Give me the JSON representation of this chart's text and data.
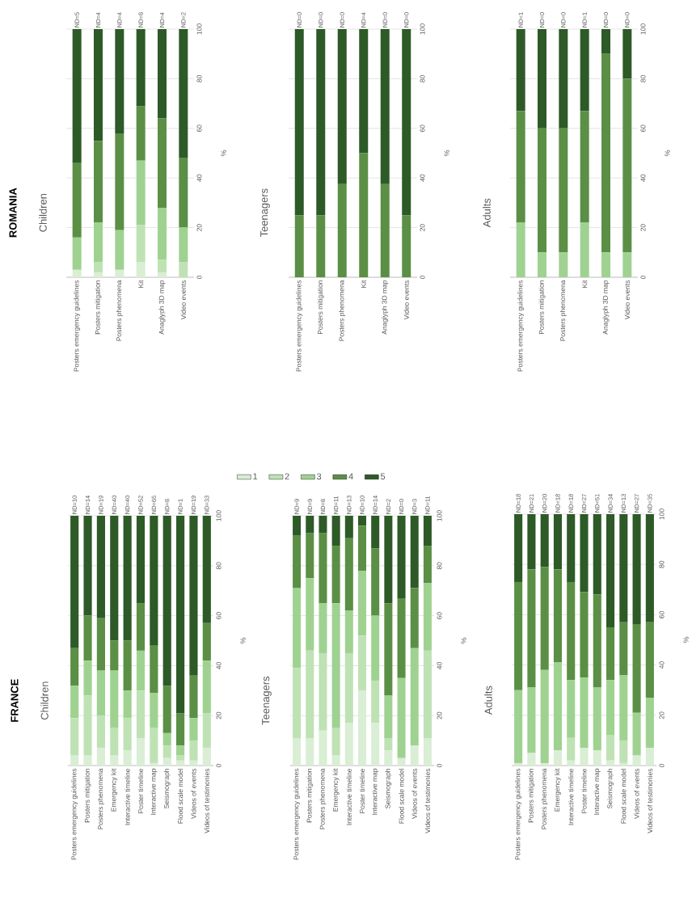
{
  "chart_data": [
    {
      "type": "bar",
      "stacked": true,
      "title": "ROMANIA",
      "subtitle": "Children",
      "ylabel": "%",
      "ylim": [
        0,
        100
      ],
      "yticks": [
        0,
        20,
        40,
        60,
        80,
        100
      ],
      "grid": "y",
      "legend": "bottom",
      "categories": [
        "Posters emergency guidelines",
        "Posters mitigation",
        "Posters phenomena",
        "Kit",
        "Anaglyph 3D map",
        "Video events"
      ],
      "series": [
        {
          "name": "1",
          "color": "#d9eed4",
          "values": [
            3,
            2,
            3,
            6,
            2,
            0
          ]
        },
        {
          "name": "2",
          "color": "#bfe2b5",
          "values": [
            0,
            4,
            0,
            15,
            5,
            6
          ]
        },
        {
          "name": "3",
          "color": "#9fd291",
          "values": [
            13,
            16,
            16,
            26,
            21,
            14
          ]
        },
        {
          "name": "4",
          "color": "#5b8f45",
          "values": [
            30,
            33,
            39,
            22,
            36,
            28
          ]
        },
        {
          "name": "5",
          "color": "#2d5a27",
          "values": [
            54,
            45,
            42,
            31,
            36,
            52
          ]
        }
      ],
      "annotations": [
        {
          "text": "ND=5",
          "x": "Posters emergency guidelines",
          "y": 100
        },
        {
          "text": "ND=4",
          "x": "Posters mitigation",
          "y": 100
        },
        {
          "text": "ND=4",
          "x": "Posters phenomena",
          "y": 100
        },
        {
          "text": "ND=8",
          "x": "Kit",
          "y": 100
        },
        {
          "text": "ND=4",
          "x": "Anaglyph 3D map",
          "y": 100
        },
        {
          "text": "ND=2",
          "x": "Video events",
          "y": 100
        }
      ]
    },
    {
      "type": "bar",
      "stacked": true,
      "title": "Teenagers",
      "ylabel": "%",
      "ylim": [
        0,
        100
      ],
      "yticks": [
        0,
        20,
        40,
        60,
        80,
        100
      ],
      "grid": "y",
      "categories": [
        "Posters emergency guidelines",
        "Posters mitigation",
        "Posters phenomena",
        "Kit",
        "Anaglyph 3D map",
        "Video events"
      ],
      "series": [
        {
          "color": "#d9eed4",
          "values": [
            0,
            0,
            0,
            0,
            0,
            0
          ]
        },
        {
          "color": "#bfe2b5",
          "values": [
            0,
            0,
            0,
            0,
            0,
            0
          ]
        },
        {
          "color": "#9fd291",
          "values": [
            0,
            0,
            0,
            0,
            0,
            0
          ]
        },
        {
          "color": "#5b8f45",
          "values": [
            25,
            25,
            37.5,
            50,
            37.5,
            25
          ]
        },
        {
          "color": "#2d5a27",
          "values": [
            75,
            75,
            62.5,
            50,
            62.5,
            75
          ]
        }
      ],
      "annotations": [
        {
          "text": "ND=0",
          "x": "Posters emergency guidelines",
          "y": 100
        },
        {
          "text": "ND=0",
          "x": "Posters mitigation",
          "y": 100
        },
        {
          "text": "ND=0",
          "x": "Posters phenomena",
          "y": 100
        },
        {
          "text": "ND=4",
          "x": "Kit",
          "y": 100
        },
        {
          "text": "ND=0",
          "x": "Anaglyph 3D map",
          "y": 100
        },
        {
          "text": "ND=0",
          "x": "Video events",
          "y": 100
        }
      ]
    },
    {
      "type": "bar",
      "stacked": true,
      "title": "Adults",
      "ylabel": "%",
      "ylim": [
        0,
        100
      ],
      "yticks": [
        0,
        20,
        40,
        60,
        80,
        100
      ],
      "grid": "y",
      "categories": [
        "Posters emergency guidelines",
        "Posters mitigation",
        "Posters phenomena",
        "Kit",
        "Anaglyph 3D map",
        "Video events"
      ],
      "series": [
        {
          "color": "#d9eed4",
          "values": [
            0,
            0,
            0,
            0,
            0,
            0
          ]
        },
        {
          "color": "#bfe2b5",
          "values": [
            0,
            0,
            0,
            0,
            0,
            0
          ]
        },
        {
          "color": "#9fd291",
          "values": [
            22,
            10,
            10,
            22,
            10,
            10
          ]
        },
        {
          "color": "#5b8f45",
          "values": [
            45,
            50,
            50,
            45,
            80,
            70
          ]
        },
        {
          "color": "#2d5a27",
          "values": [
            33,
            40,
            40,
            33,
            10,
            20
          ]
        }
      ],
      "annotations": [
        {
          "text": "ND=1",
          "x": "Posters emergency guidelines",
          "y": 100
        },
        {
          "text": "ND=0",
          "x": "Posters mitigation",
          "y": 100
        },
        {
          "text": "ND=0",
          "x": "Posters phenomena",
          "y": 100
        },
        {
          "text": "ND=1",
          "x": "Kit",
          "y": 100
        },
        {
          "text": "ND=0",
          "x": "Anaglyph 3D map",
          "y": 100
        },
        {
          "text": "ND=0",
          "x": "Video events",
          "y": 100
        }
      ]
    },
    {
      "type": "bar",
      "stacked": true,
      "title": "FRANCE",
      "subtitle": "Children",
      "ylabel": "%",
      "ylim": [
        0,
        100
      ],
      "yticks": [
        0,
        20,
        40,
        60,
        80,
        100
      ],
      "grid": "y",
      "categories": [
        "Posters emergency guidelines",
        "Posters mitigation",
        "Posters phenomena",
        "Emergency kit",
        "Interactive timeline",
        "Poster timeline",
        "Interactive map",
        "Seismograph",
        "Flood scale model",
        "Videos of events",
        "Videos of testimonies"
      ],
      "series": [
        {
          "color": "#d9eed4",
          "values": [
            4,
            4,
            7,
            4,
            6,
            11,
            1,
            3,
            2,
            2,
            7
          ]
        },
        {
          "color": "#bfe2b5",
          "values": [
            15,
            24,
            13,
            11,
            13,
            19,
            14,
            5,
            2,
            8,
            14
          ]
        },
        {
          "color": "#9fd291",
          "values": [
            13,
            14,
            18,
            23,
            11,
            16,
            14,
            5,
            4,
            9,
            21
          ]
        },
        {
          "color": "#5b8f45",
          "values": [
            15,
            18,
            21,
            12,
            20,
            19,
            19,
            19,
            13,
            17,
            15
          ]
        },
        {
          "color": "#2d5a27",
          "values": [
            53,
            40,
            41,
            50,
            50,
            35,
            52,
            68,
            79,
            64,
            43
          ]
        }
      ],
      "annotations": [
        {
          "text": "ND=10",
          "x": "Posters emergency guidelines",
          "y": 100
        },
        {
          "text": "ND=14",
          "x": "Posters mitigation",
          "y": 100
        },
        {
          "text": "ND=19",
          "x": "Posters phenomena",
          "y": 100
        },
        {
          "text": "ND=40",
          "x": "Emergency kit",
          "y": 100
        },
        {
          "text": "ND=40",
          "x": "Interactive timeline",
          "y": 100
        },
        {
          "text": "ND=52",
          "x": "Poster timeline",
          "y": 100
        },
        {
          "text": "ND=65",
          "x": "Interactive map",
          "y": 100
        },
        {
          "text": "ND=8",
          "x": "Seismograph",
          "y": 100
        },
        {
          "text": "ND=1",
          "x": "Flood scale model",
          "y": 100
        },
        {
          "text": "ND=19",
          "x": "Videos of events",
          "y": 100
        },
        {
          "text": "ND=33",
          "x": "Videos of testimonies",
          "y": 100
        }
      ]
    },
    {
      "type": "bar",
      "stacked": true,
      "title": "Teenagers",
      "ylabel": "%",
      "ylim": [
        0,
        100
      ],
      "yticks": [
        0,
        20,
        40,
        60,
        80,
        100
      ],
      "grid": "y",
      "categories": [
        "Posters emergency guidelines",
        "Posters mitigation",
        "Posters phenomena",
        "Emergency kit",
        "Interactive timeline",
        "Poster timeline",
        "Interactive map",
        "Seismograph",
        "Flood scale model",
        "Videos of events",
        "Videos of testimonies"
      ],
      "series": [
        {
          "color": "#d9eed4",
          "values": [
            11,
            11,
            14,
            4,
            17,
            30,
            17,
            6,
            3,
            8,
            11
          ]
        },
        {
          "color": "#bfe2b5",
          "values": [
            28,
            35,
            31,
            11,
            28,
            22,
            17,
            5,
            0,
            0,
            35
          ]
        },
        {
          "color": "#9fd291",
          "values": [
            32,
            29,
            20,
            50,
            17,
            26,
            26,
            17,
            32,
            39,
            27
          ]
        },
        {
          "color": "#5b8f45",
          "values": [
            21,
            18,
            28,
            23,
            29,
            18,
            27,
            37,
            32,
            24,
            15
          ]
        },
        {
          "color": "#2d5a27",
          "values": [
            8,
            7,
            7,
            12,
            9,
            4,
            13,
            35,
            33,
            29,
            12
          ]
        }
      ],
      "annotations": [
        {
          "text": "ND=9",
          "x": "Posters emergency guidelines",
          "y": 100
        },
        {
          "text": "ND=9",
          "x": "Posters mitigation",
          "y": 100
        },
        {
          "text": "ND=8",
          "x": "Posters phenomena",
          "y": 100
        },
        {
          "text": "ND=11",
          "x": "Emergency kit",
          "y": 100
        },
        {
          "text": "ND=13",
          "x": "Interactive timeline",
          "y": 100
        },
        {
          "text": "ND=10",
          "x": "Poster timeline",
          "y": 100
        },
        {
          "text": "ND=14",
          "x": "Interactive map",
          "y": 100
        },
        {
          "text": "ND=2",
          "x": "Seismograph",
          "y": 100
        },
        {
          "text": "ND=0",
          "x": "Flood scale model",
          "y": 100
        },
        {
          "text": "ND=3",
          "x": "Videos of events",
          "y": 100
        },
        {
          "text": "ND=11",
          "x": "Videos of testimonies",
          "y": 100
        }
      ]
    },
    {
      "type": "bar",
      "stacked": true,
      "title": "Adults",
      "ylabel": "%",
      "ylim": [
        0,
        100
      ],
      "yticks": [
        0,
        20,
        40,
        60,
        80,
        100
      ],
      "grid": "y",
      "categories": [
        "Posters emergency guidelines",
        "Posters mitigation",
        "Posters phenomena",
        "Emergency kit",
        "Interactive timeline",
        "Poster timeline",
        "Interactive map",
        "Seismograph",
        "Flood scale model",
        "Videos of events",
        "Videos of testimonies"
      ],
      "series": [
        {
          "color": "#d9eed4",
          "values": [
            1,
            5,
            1,
            6,
            2,
            7,
            6,
            2,
            1,
            4,
            7
          ]
        },
        {
          "color": "#bfe2b5",
          "values": [
            0,
            0,
            0,
            0,
            9,
            0,
            0,
            10,
            9,
            0,
            0
          ]
        },
        {
          "color": "#9fd291",
          "values": [
            29,
            26,
            37,
            35,
            23,
            28,
            25,
            22,
            26,
            17,
            20
          ]
        },
        {
          "color": "#5b8f45",
          "values": [
            43,
            47,
            41,
            37,
            39,
            34,
            37,
            21,
            21,
            35,
            30
          ]
        },
        {
          "color": "#2d5a27",
          "values": [
            27,
            22,
            21,
            22,
            27,
            31,
            32,
            45,
            43,
            44,
            43
          ]
        }
      ],
      "annotations": [
        {
          "text": "ND=18",
          "x": "Posters emergency guidelines",
          "y": 100
        },
        {
          "text": "ND=21",
          "x": "Posters mitigation",
          "y": 100
        },
        {
          "text": "ND=20",
          "x": "Posters phenomena",
          "y": 100
        },
        {
          "text": "ND=18",
          "x": "Emergency kit",
          "y": 100
        },
        {
          "text": "ND=18",
          "x": "Interactive timeline",
          "y": 100
        },
        {
          "text": "ND=27",
          "x": "Poster timeline",
          "y": 100
        },
        {
          "text": "ND=51",
          "x": "Interactive map",
          "y": 100
        },
        {
          "text": "ND=34",
          "x": "Seismograph",
          "y": 100
        },
        {
          "text": "ND=13",
          "x": "Flood scale model",
          "y": 100
        },
        {
          "text": "ND=27",
          "x": "Videos of events",
          "y": 100
        },
        {
          "text": "ND=35",
          "x": "Videos of testimonies",
          "y": 100
        }
      ]
    }
  ]
}
